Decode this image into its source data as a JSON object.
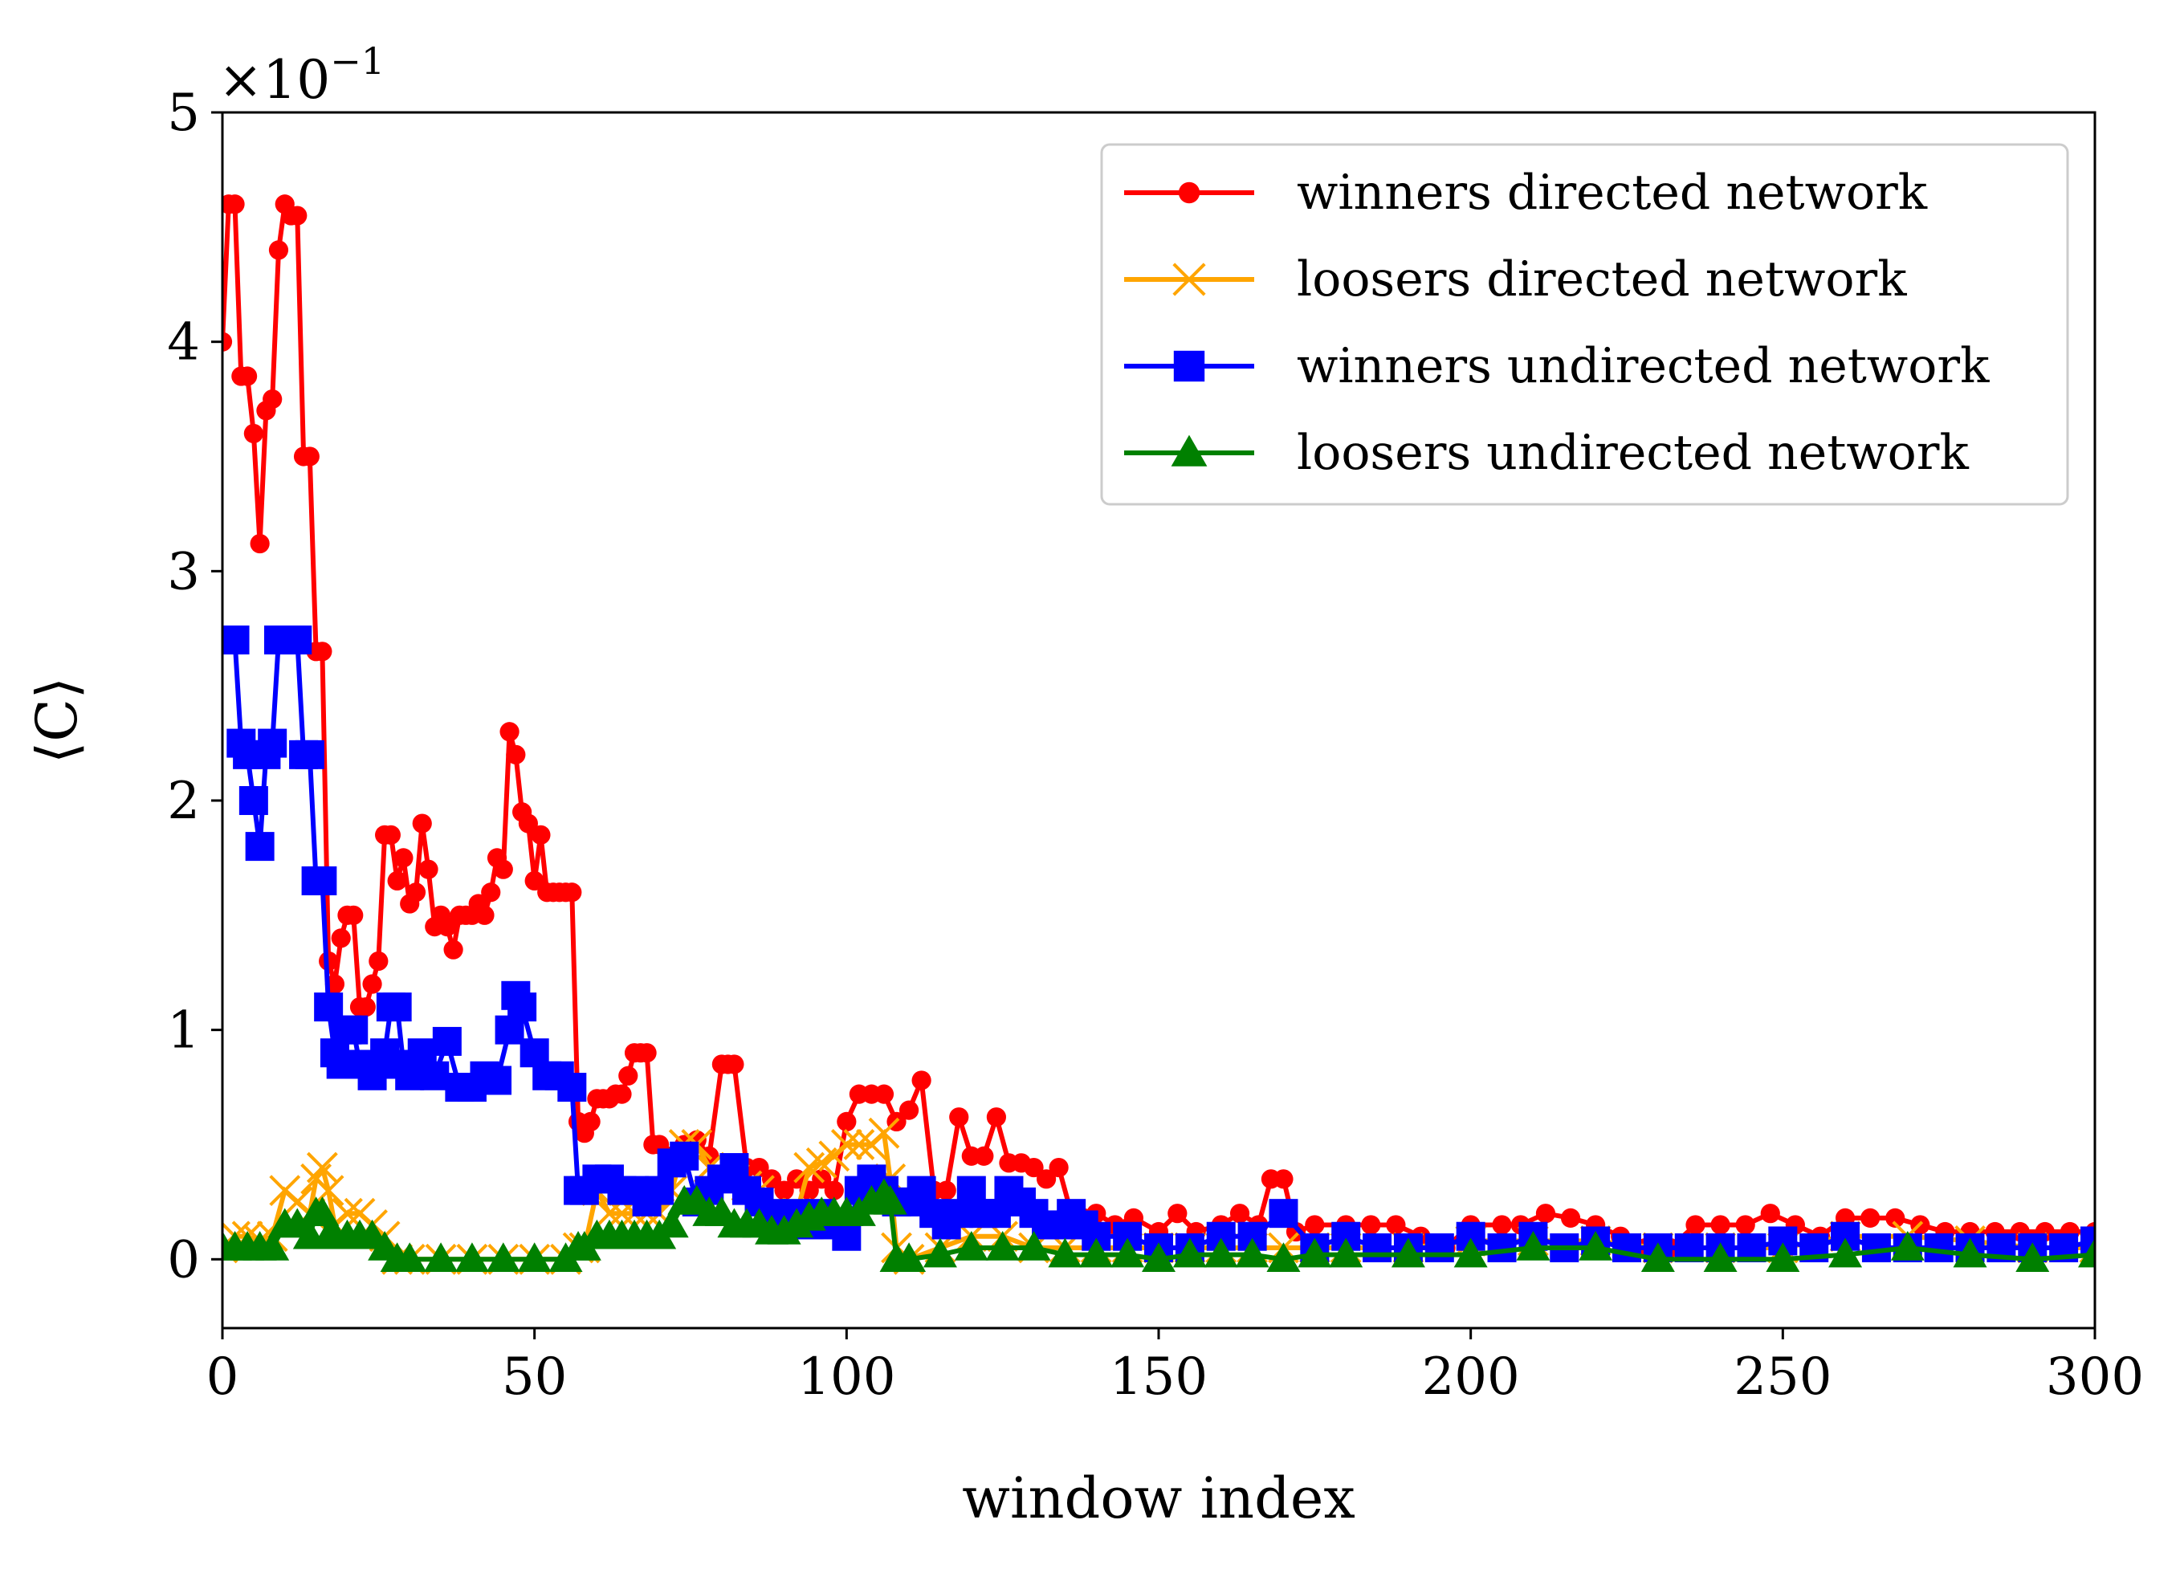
{
  "chart_data": {
    "type": "line",
    "title": "",
    "xlabel": "window index",
    "ylabel": "⟨C⟩",
    "y_multiplier_base": "×10",
    "y_multiplier_exp": "−1",
    "xlim": [
      0,
      300
    ],
    "ylim": [
      -0.3,
      5
    ],
    "xticks": [
      0,
      50,
      100,
      150,
      200,
      250,
      300
    ],
    "xtick_labels": [
      "0",
      "50",
      "100",
      "150",
      "200",
      "250",
      "300"
    ],
    "yticks": [
      0,
      1,
      2,
      3,
      4,
      5
    ],
    "ytick_labels": [
      "0",
      "1",
      "2",
      "3",
      "4",
      "5"
    ],
    "grid": false,
    "legend_position": "top-right",
    "series": [
      {
        "name": "winners directed network",
        "color": "#ff0000",
        "marker": "circle",
        "x": [
          0,
          1,
          2,
          3,
          4,
          5,
          6,
          7,
          8,
          9,
          10,
          11,
          12,
          13,
          14,
          15,
          16,
          17,
          18,
          19,
          20,
          21,
          22,
          23,
          24,
          25,
          26,
          27,
          28,
          29,
          30,
          31,
          32,
          33,
          34,
          35,
          36,
          37,
          38,
          39,
          40,
          41,
          42,
          43,
          44,
          45,
          46,
          47,
          48,
          49,
          50,
          51,
          52,
          53,
          54,
          55,
          56,
          57,
          58,
          59,
          60,
          61,
          62,
          63,
          64,
          65,
          66,
          67,
          68,
          69,
          70,
          72,
          74,
          76,
          78,
          80,
          81,
          82,
          84,
          86,
          88,
          90,
          92,
          94,
          96,
          98,
          100,
          102,
          104,
          106,
          108,
          110,
          112,
          114,
          116,
          118,
          120,
          122,
          124,
          126,
          128,
          130,
          132,
          134,
          136,
          138,
          140,
          143,
          146,
          150,
          153,
          156,
          160,
          163,
          166,
          168,
          170,
          172,
          175,
          180,
          184,
          188,
          192,
          196,
          200,
          205,
          208,
          212,
          216,
          220,
          224,
          228,
          232,
          236,
          240,
          244,
          248,
          252,
          256,
          260,
          264,
          268,
          272,
          276,
          280,
          284,
          288,
          292,
          296,
          300
        ],
        "values": [
          4.0,
          4.6,
          4.6,
          3.85,
          3.85,
          3.6,
          3.12,
          3.7,
          3.75,
          4.4,
          4.6,
          4.55,
          4.55,
          3.5,
          3.5,
          2.65,
          2.65,
          1.3,
          1.2,
          1.4,
          1.5,
          1.5,
          1.1,
          1.1,
          1.2,
          1.3,
          1.85,
          1.85,
          1.65,
          1.75,
          1.55,
          1.6,
          1.9,
          1.7,
          1.45,
          1.5,
          1.45,
          1.35,
          1.5,
          1.5,
          1.5,
          1.55,
          1.5,
          1.6,
          1.75,
          1.7,
          2.3,
          2.2,
          1.95,
          1.9,
          1.65,
          1.85,
          1.6,
          1.6,
          1.6,
          1.6,
          1.6,
          0.6,
          0.55,
          0.6,
          0.7,
          0.7,
          0.7,
          0.72,
          0.72,
          0.8,
          0.9,
          0.9,
          0.9,
          0.5,
          0.5,
          0.45,
          0.5,
          0.52,
          0.45,
          0.85,
          0.85,
          0.85,
          0.4,
          0.4,
          0.35,
          0.3,
          0.35,
          0.3,
          0.35,
          0.3,
          0.6,
          0.72,
          0.72,
          0.72,
          0.6,
          0.65,
          0.78,
          0.3,
          0.3,
          0.62,
          0.45,
          0.45,
          0.62,
          0.42,
          0.42,
          0.4,
          0.35,
          0.4,
          0.2,
          0.18,
          0.2,
          0.15,
          0.18,
          0.12,
          0.2,
          0.12,
          0.15,
          0.2,
          0.15,
          0.35,
          0.35,
          0.12,
          0.15,
          0.15,
          0.15,
          0.15,
          0.1,
          0.05,
          0.15,
          0.15,
          0.15,
          0.2,
          0.18,
          0.15,
          0.1,
          0.05,
          0.05,
          0.15,
          0.15,
          0.15,
          0.2,
          0.15,
          0.1,
          0.18,
          0.18,
          0.18,
          0.15,
          0.12,
          0.12,
          0.12,
          0.12,
          0.12,
          0.12,
          0.12
        ]
      },
      {
        "name": "loosers directed network",
        "color": "#ffa500",
        "marker": "x",
        "x": [
          0,
          2,
          4,
          6,
          8,
          10,
          12,
          14,
          15,
          16,
          17,
          18,
          20,
          22,
          24,
          26,
          28,
          30,
          35,
          40,
          45,
          50,
          55,
          57,
          58,
          60,
          62,
          64,
          66,
          68,
          70,
          72,
          74,
          76,
          78,
          80,
          82,
          84,
          86,
          88,
          90,
          92,
          94,
          96,
          98,
          100,
          102,
          104,
          106,
          107,
          108,
          110,
          115,
          120,
          125,
          130,
          135,
          140,
          145,
          150,
          155,
          160,
          165,
          170,
          175,
          180,
          190,
          200,
          210,
          220,
          230,
          240,
          250,
          260,
          270,
          280,
          290,
          300
        ],
        "values": [
          0.05,
          0.1,
          0.1,
          0.08,
          0.1,
          0.3,
          0.25,
          0.2,
          0.35,
          0.4,
          0.3,
          0.15,
          0.2,
          0.2,
          0.15,
          0.1,
          0.0,
          0.0,
          0.0,
          0.0,
          0.0,
          0.0,
          0.0,
          0.05,
          0.05,
          0.3,
          0.2,
          0.2,
          0.2,
          0.2,
          0.2,
          0.3,
          0.5,
          0.5,
          0.4,
          0.35,
          0.35,
          0.32,
          0.3,
          0.2,
          0.15,
          0.2,
          0.4,
          0.42,
          0.45,
          0.5,
          0.5,
          0.5,
          0.55,
          0.35,
          0.05,
          0.0,
          0.05,
          0.1,
          0.1,
          0.05,
          0.05,
          0.05,
          0.05,
          0.05,
          0.05,
          0.05,
          0.05,
          0.05,
          0.05,
          0.05,
          0.05,
          0.08,
          0.08,
          0.08,
          0.05,
          0.05,
          0.05,
          0.1,
          0.1,
          0.08,
          0.05,
          0.05
        ]
      },
      {
        "name": "winners undirected network",
        "color": "#0000ff",
        "marker": "square",
        "x": [
          0,
          1,
          2,
          3,
          4,
          5,
          6,
          7,
          8,
          9,
          10,
          11,
          12,
          13,
          14,
          15,
          16,
          17,
          18,
          19,
          20,
          21,
          22,
          23,
          24,
          25,
          26,
          27,
          28,
          29,
          30,
          32,
          34,
          36,
          38,
          40,
          42,
          44,
          46,
          47,
          48,
          50,
          52,
          54,
          56,
          57,
          58,
          60,
          62,
          64,
          66,
          68,
          70,
          72,
          74,
          76,
          78,
          80,
          82,
          84,
          86,
          88,
          90,
          92,
          94,
          96,
          98,
          100,
          102,
          104,
          106,
          108,
          110,
          112,
          114,
          116,
          118,
          120,
          122,
          124,
          126,
          128,
          130,
          132,
          134,
          136,
          138,
          140,
          145,
          150,
          155,
          160,
          165,
          170,
          175,
          180,
          185,
          190,
          195,
          200,
          205,
          210,
          215,
          220,
          225,
          230,
          235,
          240,
          245,
          250,
          255,
          260,
          265,
          270,
          275,
          280,
          285,
          290,
          295,
          300
        ],
        "values": [
          2.7,
          2.7,
          2.7,
          2.25,
          2.2,
          2.0,
          1.8,
          2.2,
          2.25,
          2.7,
          2.7,
          2.7,
          2.7,
          2.2,
          2.2,
          1.65,
          1.65,
          1.1,
          0.9,
          0.85,
          1.0,
          1.0,
          0.85,
          0.85,
          0.8,
          0.85,
          0.9,
          1.1,
          1.1,
          0.85,
          0.8,
          0.9,
          0.8,
          0.95,
          0.75,
          0.75,
          0.8,
          0.78,
          1.0,
          1.15,
          1.1,
          0.9,
          0.8,
          0.8,
          0.75,
          0.3,
          0.3,
          0.35,
          0.35,
          0.3,
          0.3,
          0.25,
          0.3,
          0.42,
          0.45,
          0.25,
          0.3,
          0.35,
          0.4,
          0.3,
          0.25,
          0.2,
          0.15,
          0.2,
          0.15,
          0.2,
          0.15,
          0.1,
          0.3,
          0.35,
          0.3,
          0.25,
          0.25,
          0.3,
          0.2,
          0.15,
          0.2,
          0.3,
          0.2,
          0.2,
          0.3,
          0.25,
          0.2,
          0.15,
          0.15,
          0.2,
          0.15,
          0.1,
          0.1,
          0.05,
          0.05,
          0.1,
          0.1,
          0.2,
          0.05,
          0.1,
          0.05,
          0.05,
          0.05,
          0.1,
          0.05,
          0.1,
          0.05,
          0.08,
          0.05,
          0.05,
          0.05,
          0.05,
          0.05,
          0.08,
          0.05,
          0.1,
          0.05,
          0.05,
          0.05,
          0.05,
          0.05,
          0.05,
          0.05,
          0.08
        ]
      },
      {
        "name": "loosers undirected network",
        "color": "#008000",
        "marker": "triangle",
        "x": [
          0,
          2,
          4,
          6,
          8,
          10,
          12,
          14,
          15,
          16,
          17,
          18,
          20,
          22,
          24,
          26,
          28,
          30,
          35,
          40,
          45,
          50,
          55,
          57,
          58,
          60,
          62,
          64,
          66,
          68,
          70,
          72,
          74,
          76,
          78,
          80,
          82,
          84,
          86,
          88,
          90,
          92,
          94,
          96,
          98,
          100,
          102,
          104,
          106,
          107,
          108,
          110,
          115,
          120,
          125,
          130,
          135,
          140,
          145,
          150,
          155,
          160,
          165,
          170,
          175,
          180,
          190,
          200,
          210,
          220,
          230,
          240,
          250,
          260,
          270,
          280,
          290,
          300
        ],
        "values": [
          0.05,
          0.05,
          0.05,
          0.05,
          0.05,
          0.15,
          0.15,
          0.1,
          0.2,
          0.2,
          0.1,
          0.1,
          0.1,
          0.1,
          0.1,
          0.05,
          0.0,
          0.0,
          0.0,
          0.0,
          0.0,
          0.0,
          0.0,
          0.05,
          0.05,
          0.1,
          0.1,
          0.1,
          0.1,
          0.1,
          0.1,
          0.15,
          0.25,
          0.25,
          0.2,
          0.2,
          0.15,
          0.15,
          0.15,
          0.12,
          0.12,
          0.15,
          0.18,
          0.2,
          0.2,
          0.2,
          0.2,
          0.25,
          0.28,
          0.25,
          0.0,
          0.0,
          0.02,
          0.05,
          0.05,
          0.05,
          0.02,
          0.02,
          0.02,
          0.0,
          0.02,
          0.02,
          0.02,
          0.0,
          0.02,
          0.02,
          0.02,
          0.02,
          0.05,
          0.05,
          0.0,
          0.0,
          0.0,
          0.02,
          0.05,
          0.02,
          0.0,
          0.02
        ]
      }
    ]
  }
}
